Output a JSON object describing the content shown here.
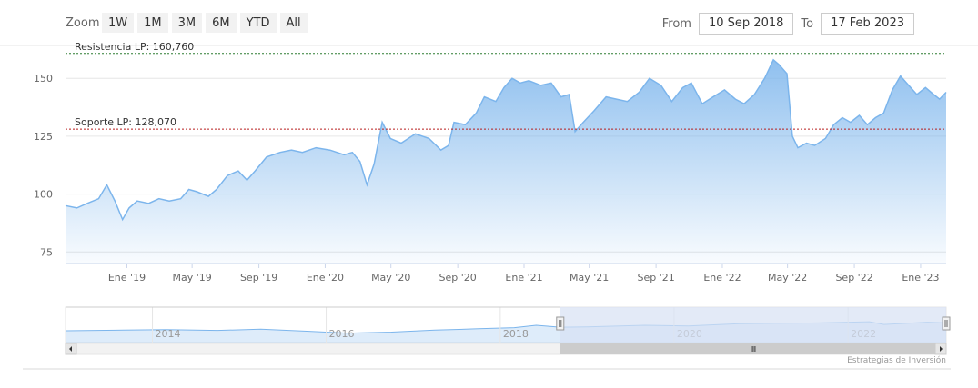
{
  "toolbar": {
    "zoom_label": "Zoom",
    "zoom_buttons": [
      "1W",
      "1M",
      "3M",
      "6M",
      "YTD",
      "All"
    ],
    "from_label": "From",
    "from_value": "10 Sep 2018",
    "to_label": "To",
    "to_value": "17 Feb 2023"
  },
  "chart_data": {
    "type": "area",
    "series_color": "#7cb5ec",
    "x_tick_labels": [
      "Ene '19",
      "May '19",
      "Sep '19",
      "Ene '20",
      "May '20",
      "Sep '20",
      "Ene '21",
      "May '21",
      "Sep '21",
      "Ene '22",
      "May '22",
      "Sep '22",
      "Ene '23"
    ],
    "ylim": [
      70,
      165
    ],
    "y_ticks": [
      75,
      100,
      125,
      150
    ],
    "grid": true,
    "x_start": "2018-09-10",
    "x_end": "2023-02-17",
    "points": [
      [
        "2018-09-10",
        95
      ],
      [
        "2018-10-01",
        94
      ],
      [
        "2018-10-20",
        96
      ],
      [
        "2018-11-10",
        98
      ],
      [
        "2018-11-25",
        104
      ],
      [
        "2018-12-10",
        97
      ],
      [
        "2018-12-24",
        89
      ],
      [
        "2019-01-05",
        94
      ],
      [
        "2019-01-20",
        97
      ],
      [
        "2019-02-10",
        96
      ],
      [
        "2019-03-01",
        98
      ],
      [
        "2019-03-20",
        97
      ],
      [
        "2019-04-10",
        98
      ],
      [
        "2019-04-25",
        102
      ],
      [
        "2019-05-10",
        101
      ],
      [
        "2019-05-31",
        99
      ],
      [
        "2019-06-15",
        102
      ],
      [
        "2019-07-05",
        108
      ],
      [
        "2019-07-25",
        110
      ],
      [
        "2019-08-10",
        106
      ],
      [
        "2019-08-25",
        110
      ],
      [
        "2019-09-15",
        116
      ],
      [
        "2019-10-10",
        118
      ],
      [
        "2019-10-31",
        119
      ],
      [
        "2019-11-20",
        118
      ],
      [
        "2019-12-15",
        120
      ],
      [
        "2020-01-10",
        119
      ],
      [
        "2020-02-05",
        117
      ],
      [
        "2020-02-20",
        118
      ],
      [
        "2020-03-05",
        114
      ],
      [
        "2020-03-18",
        104
      ],
      [
        "2020-03-31",
        113
      ],
      [
        "2020-04-15",
        131
      ],
      [
        "2020-04-30",
        124
      ],
      [
        "2020-05-20",
        122
      ],
      [
        "2020-06-15",
        126
      ],
      [
        "2020-07-10",
        124
      ],
      [
        "2020-08-01",
        119
      ],
      [
        "2020-08-15",
        121
      ],
      [
        "2020-08-25",
        131
      ],
      [
        "2020-09-15",
        130
      ],
      [
        "2020-10-05",
        135
      ],
      [
        "2020-10-20",
        142
      ],
      [
        "2020-11-10",
        140
      ],
      [
        "2020-11-25",
        146
      ],
      [
        "2020-12-10",
        150
      ],
      [
        "2020-12-25",
        148
      ],
      [
        "2021-01-10",
        149
      ],
      [
        "2021-02-01",
        147
      ],
      [
        "2021-02-20",
        148
      ],
      [
        "2021-03-10",
        142
      ],
      [
        "2021-03-25",
        143
      ],
      [
        "2021-04-05",
        127
      ],
      [
        "2021-04-20",
        131
      ],
      [
        "2021-05-10",
        136
      ],
      [
        "2021-06-01",
        142
      ],
      [
        "2021-06-20",
        141
      ],
      [
        "2021-07-10",
        140
      ],
      [
        "2021-08-01",
        144
      ],
      [
        "2021-08-20",
        150
      ],
      [
        "2021-09-10",
        147
      ],
      [
        "2021-09-30",
        140
      ],
      [
        "2021-10-20",
        146
      ],
      [
        "2021-11-05",
        148
      ],
      [
        "2021-11-25",
        139
      ],
      [
        "2021-12-15",
        142
      ],
      [
        "2022-01-05",
        145
      ],
      [
        "2022-01-25",
        141
      ],
      [
        "2022-02-10",
        139
      ],
      [
        "2022-03-01",
        143
      ],
      [
        "2022-03-20",
        150
      ],
      [
        "2022-04-05",
        158
      ],
      [
        "2022-04-15",
        156
      ],
      [
        "2022-04-30",
        152
      ],
      [
        "2022-05-10",
        125
      ],
      [
        "2022-05-20",
        120
      ],
      [
        "2022-06-05",
        122
      ],
      [
        "2022-06-20",
        121
      ],
      [
        "2022-07-10",
        124
      ],
      [
        "2022-07-25",
        130
      ],
      [
        "2022-08-10",
        133
      ],
      [
        "2022-08-25",
        131
      ],
      [
        "2022-09-10",
        134
      ],
      [
        "2022-09-25",
        130
      ],
      [
        "2022-10-10",
        133
      ],
      [
        "2022-10-25",
        135
      ],
      [
        "2022-11-10",
        145
      ],
      [
        "2022-11-25",
        151
      ],
      [
        "2022-12-10",
        147
      ],
      [
        "2022-12-25",
        143
      ],
      [
        "2023-01-10",
        146
      ],
      [
        "2023-01-25",
        143
      ],
      [
        "2023-02-05",
        141
      ],
      [
        "2023-02-17",
        144
      ]
    ],
    "plot_lines": [
      {
        "label": "Resistencia LP: 160,760",
        "value": 160.76,
        "color": "#2e7d32"
      },
      {
        "label": "Soporte LP: 128,070",
        "value": 128.07,
        "color": "#b71c1c"
      }
    ]
  },
  "navigator": {
    "year_labels": [
      "2014",
      "2016",
      "2018",
      "2020",
      "2022"
    ],
    "series_color": "#7cb5ec",
    "mask_color": "#d7e1f4",
    "selected_from": "2018-09-10",
    "selected_to": "2023-02-17",
    "x_start": "2013-01-01",
    "x_end": "2023-02-17",
    "points": [
      [
        "2013-01-01",
        0.42
      ],
      [
        "2013-09-01",
        0.45
      ],
      [
        "2014-03-01",
        0.48
      ],
      [
        "2014-10-01",
        0.44
      ],
      [
        "2015-04-01",
        0.5
      ],
      [
        "2015-10-01",
        0.4
      ],
      [
        "2016-04-01",
        0.3
      ],
      [
        "2016-10-01",
        0.35
      ],
      [
        "2017-04-01",
        0.45
      ],
      [
        "2017-10-01",
        0.52
      ],
      [
        "2018-03-01",
        0.58
      ],
      [
        "2018-06-01",
        0.7
      ],
      [
        "2018-09-10",
        0.6
      ],
      [
        "2019-01-01",
        0.62
      ],
      [
        "2019-09-01",
        0.7
      ],
      [
        "2020-03-01",
        0.66
      ],
      [
        "2020-10-01",
        0.78
      ],
      [
        "2021-03-01",
        0.8
      ],
      [
        "2021-09-01",
        0.82
      ],
      [
        "2022-04-01",
        0.88
      ],
      [
        "2022-06-01",
        0.74
      ],
      [
        "2022-12-01",
        0.86
      ],
      [
        "2023-02-17",
        0.82
      ]
    ]
  },
  "credits": "Estrategias de Inversión"
}
